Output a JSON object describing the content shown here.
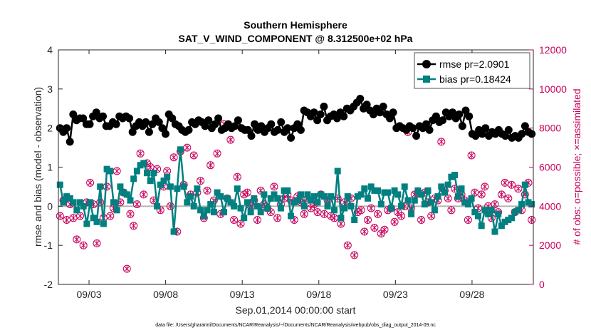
{
  "chart_data": {
    "type": "line",
    "title": "Southern Hemisphere",
    "subtitle": "SAT_V_WIND_COMPONENT @ 8.312500e+02 hPa",
    "xlabel": "Sep.01,2014 00:00:00 start",
    "ylabel_left": "rmse and bias (model - observation)",
    "ylabel_right": "# of obs: o=possible; ×=assimilated",
    "footnote": "data file: /Users/gharamti/Documents/NCAR/Reanalysis/~/Documents/NCAR/Reanalysis/webpub/obs_diag_output_2014-09.nc",
    "x_range": [
      1,
      32
    ],
    "ylim_left": [
      -2,
      4
    ],
    "ylim_right": [
      0,
      12000
    ],
    "x_ticks": [
      3,
      8,
      13,
      18,
      23,
      28
    ],
    "x_tick_labels": [
      "09/03",
      "09/08",
      "09/13",
      "09/18",
      "09/23",
      "09/28"
    ],
    "y_ticks_left": [
      "-2",
      "-1",
      "0",
      "1",
      "2",
      "3",
      "4"
    ],
    "y_ticks_right": [
      "0",
      "2000",
      "4000",
      "6000",
      "8000",
      "10000",
      "12000"
    ],
    "legend": [
      "rmse pr=2.0901",
      "bias pr=0.18424"
    ],
    "colors": {
      "rmse": "#000000",
      "bias": "#008080",
      "obs": "#c8005a",
      "zero_line": "#b4b4b4"
    },
    "series": [
      {
        "name": "rmse",
        "axis": "left",
        "values": [
          2.0,
          1.9,
          2.0,
          1.65,
          2.35,
          2.2,
          2.25,
          2.25,
          2.1,
          2.1,
          2.3,
          2.4,
          2.25,
          2.3,
          2.05,
          2.05,
          2.15,
          2.1,
          2.3,
          2.25,
          2.3,
          2.25,
          1.9,
          2.05,
          2.15,
          2.05,
          2.15,
          1.9,
          2.1,
          2.25,
          2.15,
          2.0,
          1.85,
          2.35,
          2.25,
          2.1,
          2.05,
          1.95,
          1.9,
          1.95,
          2.15,
          2.1,
          2.2,
          2.15,
          2.05,
          2.2,
          2.0,
          2.1,
          2.25,
          1.95,
          2.0,
          2.1,
          2.0,
          2.05,
          2.2,
          2.0,
          1.95,
          1.95,
          1.8,
          2.1,
          1.95,
          2.05,
          1.9,
          2.0,
          2.1,
          1.9,
          1.95,
          2.15,
          1.9,
          2.0,
          1.75,
          2.0,
          2.1,
          1.95,
          2.45,
          2.4,
          2.3,
          2.4,
          2.2,
          2.35,
          2.55,
          2.2,
          2.3,
          2.35,
          2.25,
          2.4,
          2.3,
          2.5,
          2.45,
          2.55,
          2.65,
          2.75,
          2.5,
          2.6,
          2.45,
          2.35,
          2.5,
          2.4,
          2.55,
          2.35,
          2.25,
          2.4,
          2.0,
          2.05,
          2.0,
          1.95,
          2.05,
          2.0,
          1.8,
          2.05,
          2.0,
          2.1,
          1.95,
          2.2,
          2.3,
          2.15,
          2.2,
          2.4,
          2.3,
          2.4,
          2.25,
          2.35,
          2.05,
          2.45,
          2.3,
          1.85,
          1.8,
          1.95,
          1.85,
          2.0,
          1.8,
          1.9,
          1.85,
          1.95,
          1.85,
          1.8,
          1.95,
          1.75,
          1.8,
          1.75,
          1.85,
          2.05,
          1.9,
          1.85
        ]
      },
      {
        "name": "bias",
        "axis": "left",
        "values": [
          0.55,
          0.1,
          0.25,
          0.2,
          0.1,
          -0.1,
          0.1,
          0.0,
          -0.45,
          0.1,
          -0.3,
          -0.4,
          0.5,
          -0.45,
          0.95,
          0.9,
          0.1,
          -0.1,
          0.5,
          0.35,
          0.3,
          0.15,
          0.7,
          0.9,
          1.05,
          1.1,
          0.85,
          0.65,
          0.85,
          0.0,
          0.55,
          0.65,
          0.75,
          0.5,
          -0.65,
          0.45,
          1.45,
          0.5,
          0.1,
          0.25,
          0.0,
          0.45,
          -0.1,
          -0.25,
          -0.1,
          0.05,
          -0.15,
          0.35,
          0.25,
          -0.15,
          0.2,
          0.1,
          0.0,
          0.45,
          -0.05,
          -0.3,
          0.1,
          -0.15,
          0.2,
          0.0,
          -0.15,
          0.3,
          -0.05,
          0.2,
          0.3,
          0.2,
          -0.05,
          0.4,
          0.4,
          -0.25,
          0.1,
          0.15,
          0.3,
          0.0,
          0.3,
          0.15,
          0.25,
          0.1,
          0.3,
          0.25,
          0.0,
          0.25,
          -0.1,
          0.9,
          -0.3,
          -0.05,
          0.25,
          0.0,
          -0.35,
          0.25,
          0.3,
          0.45,
          0.2,
          0.5,
          0.4,
          0.4,
          0.05,
          0.35,
          0.35,
          -0.05,
          0.4,
          0.3,
          0.0,
          0.5,
          0.15,
          -0.2,
          0.15,
          0.4,
          0.3,
          0.05,
          0.4,
          0.1,
          -0.1,
          0.25,
          0.5,
          0.35,
          0.55,
          0.75,
          0.8,
          0.25,
          0.45,
          0.1,
          0.05,
          0.2,
          -0.15,
          -0.25,
          -0.5,
          -0.1,
          -0.2,
          -0.1,
          -0.65,
          -0.2,
          -0.5,
          -0.4,
          -0.35,
          -0.3,
          -0.15,
          -0.1,
          0.05,
          0.55,
          0.1,
          0.05
        ]
      },
      {
        "name": "obs_possible",
        "axis": "right",
        "values": [
          3500,
          4300,
          3300,
          4100,
          3400,
          2300,
          3500,
          2000,
          4200,
          5200,
          4100,
          2100,
          4200,
          3400,
          5000,
          3500,
          3900,
          5800,
          4200,
          4700,
          800,
          3600,
          3000,
          4100,
          6700,
          4600,
          6200,
          6000,
          4300,
          5900,
          3800,
          5000,
          5800,
          4000,
          6500,
          2700,
          6800,
          5100,
          7000,
          4600,
          6600,
          4700,
          5300,
          3400,
          4800,
          6100,
          4300,
          6700,
          3600,
          8200,
          4400,
          7400,
          3300,
          5500,
          3100,
          4600,
          4700,
          4000,
          4300,
          3300,
          4800,
          4100,
          3900,
          3700,
          5000,
          3400,
          4100,
          4400,
          4600,
          4300,
          3300,
          4500,
          4200,
          3600,
          4400,
          3900,
          4100,
          3700,
          4600,
          3600,
          4300,
          3500,
          3400,
          4400,
          3100,
          4200,
          2000,
          4400,
          1500,
          3700,
          3800,
          2700,
          3300,
          3900,
          2900,
          3600,
          2600,
          2800,
          3800,
          3900,
          3200,
          3700,
          3500,
          4000,
          7800,
          3900,
          4600,
          4700,
          3300,
          4700,
          4200,
          3500,
          4400,
          4300,
          7300,
          4800,
          4400,
          3800,
          4900,
          4400,
          4600,
          4300,
          3300,
          6600,
          4700,
          3900,
          4600,
          5000,
          4000,
          3400,
          4100,
          3700,
          4600,
          5200,
          4400,
          5100,
          3700,
          4900,
          3800,
          4600,
          5200,
          3300
        ]
      },
      {
        "name": "obs_assimilated",
        "axis": "right",
        "values": [
          3500,
          4300,
          3300,
          4100,
          3400,
          2300,
          3500,
          2000,
          4200,
          5200,
          4100,
          2100,
          4200,
          3400,
          5000,
          3500,
          3900,
          5800,
          4200,
          4700,
          800,
          3600,
          3000,
          4100,
          6700,
          4600,
          6200,
          6000,
          4300,
          5900,
          3800,
          5000,
          5800,
          4000,
          6500,
          2700,
          6800,
          5100,
          7000,
          4600,
          6600,
          4700,
          5300,
          3400,
          4800,
          6100,
          4300,
          6700,
          3600,
          8200,
          4400,
          7400,
          3300,
          5500,
          3100,
          4600,
          4700,
          4000,
          4300,
          3300,
          4800,
          4100,
          3900,
          3700,
          5000,
          3400,
          4100,
          4400,
          4600,
          4300,
          3300,
          4500,
          4200,
          3600,
          4400,
          3900,
          4100,
          3700,
          4600,
          3600,
          4300,
          3500,
          3400,
          4400,
          3100,
          4200,
          2000,
          4400,
          1500,
          3700,
          3800,
          2700,
          3300,
          3900,
          2900,
          3600,
          2600,
          2800,
          3800,
          3900,
          3200,
          3700,
          3500,
          4000,
          7800,
          3900,
          4600,
          4700,
          3300,
          4700,
          4200,
          3500,
          4400,
          4300,
          7300,
          4800,
          4400,
          3800,
          4900,
          4400,
          4600,
          4300,
          3300,
          6600,
          4700,
          3900,
          4600,
          5000,
          4000,
          3400,
          4100,
          3700,
          4600,
          5200,
          4400,
          5100,
          3700,
          4900,
          3800,
          4600,
          5200,
          3300
        ]
      }
    ]
  }
}
